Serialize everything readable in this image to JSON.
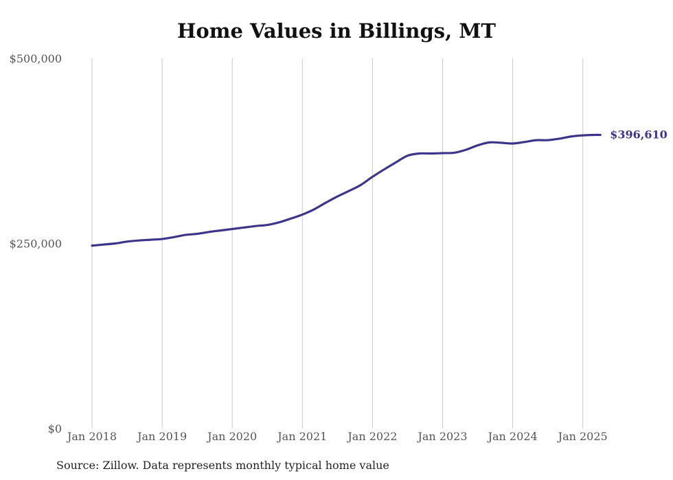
{
  "chart_data": {
    "type": "line",
    "title": "Home Values in Billings, MT",
    "source": "Source: Zillow. Data represents monthly typical home value",
    "ylim": [
      0,
      500000
    ],
    "yticks": [
      {
        "value": 0,
        "label": "$0"
      },
      {
        "value": 250000,
        "label": "$250,000"
      },
      {
        "value": 500000,
        "label": "$500,000"
      }
    ],
    "xticks": [
      {
        "value": "2018-01",
        "label": "Jan 2018"
      },
      {
        "value": "2019-01",
        "label": "Jan 2019"
      },
      {
        "value": "2020-01",
        "label": "Jan 2020"
      },
      {
        "value": "2021-01",
        "label": "Jan 2021"
      },
      {
        "value": "2022-01",
        "label": "Jan 2022"
      },
      {
        "value": "2023-01",
        "label": "Jan 2023"
      },
      {
        "value": "2024-01",
        "label": "Jan 2024"
      },
      {
        "value": "2025-01",
        "label": "Jan 2025"
      }
    ],
    "grid": "vertical",
    "line_color": "#3d3589",
    "end_label": "$396,610",
    "series": [
      {
        "points": [
          [
            "2018-01",
            247000
          ],
          [
            "2018-03",
            248500
          ],
          [
            "2018-05",
            250000
          ],
          [
            "2018-07",
            252500
          ],
          [
            "2018-09",
            254000
          ],
          [
            "2018-11",
            255000
          ],
          [
            "2019-01",
            256000
          ],
          [
            "2019-03",
            258500
          ],
          [
            "2019-05",
            261500
          ],
          [
            "2019-07",
            263000
          ],
          [
            "2019-09",
            265500
          ],
          [
            "2019-11",
            267500
          ],
          [
            "2020-01",
            269500
          ],
          [
            "2020-03",
            271500
          ],
          [
            "2020-05",
            273500
          ],
          [
            "2020-07",
            275000
          ],
          [
            "2020-09",
            278500
          ],
          [
            "2020-11",
            283500
          ],
          [
            "2021-01",
            289000
          ],
          [
            "2021-03",
            296000
          ],
          [
            "2021-05",
            305000
          ],
          [
            "2021-07",
            313500
          ],
          [
            "2021-09",
            321000
          ],
          [
            "2021-11",
            329000
          ],
          [
            "2022-01",
            340000
          ],
          [
            "2022-03",
            350000
          ],
          [
            "2022-05",
            359500
          ],
          [
            "2022-07",
            368500
          ],
          [
            "2022-09",
            371500
          ],
          [
            "2022-11",
            371500
          ],
          [
            "2023-01",
            372000
          ],
          [
            "2023-03",
            372500
          ],
          [
            "2023-05",
            376500
          ],
          [
            "2023-07",
            382500
          ],
          [
            "2023-09",
            386500
          ],
          [
            "2023-11",
            386000
          ],
          [
            "2024-01",
            385000
          ],
          [
            "2024-03",
            387000
          ],
          [
            "2024-05",
            389500
          ],
          [
            "2024-07",
            389500
          ],
          [
            "2024-09",
            391500
          ],
          [
            "2024-11",
            394500
          ],
          [
            "2025-01",
            396000
          ],
          [
            "2025-03",
            396610
          ],
          [
            "2025-04",
            396610
          ]
        ]
      }
    ]
  }
}
